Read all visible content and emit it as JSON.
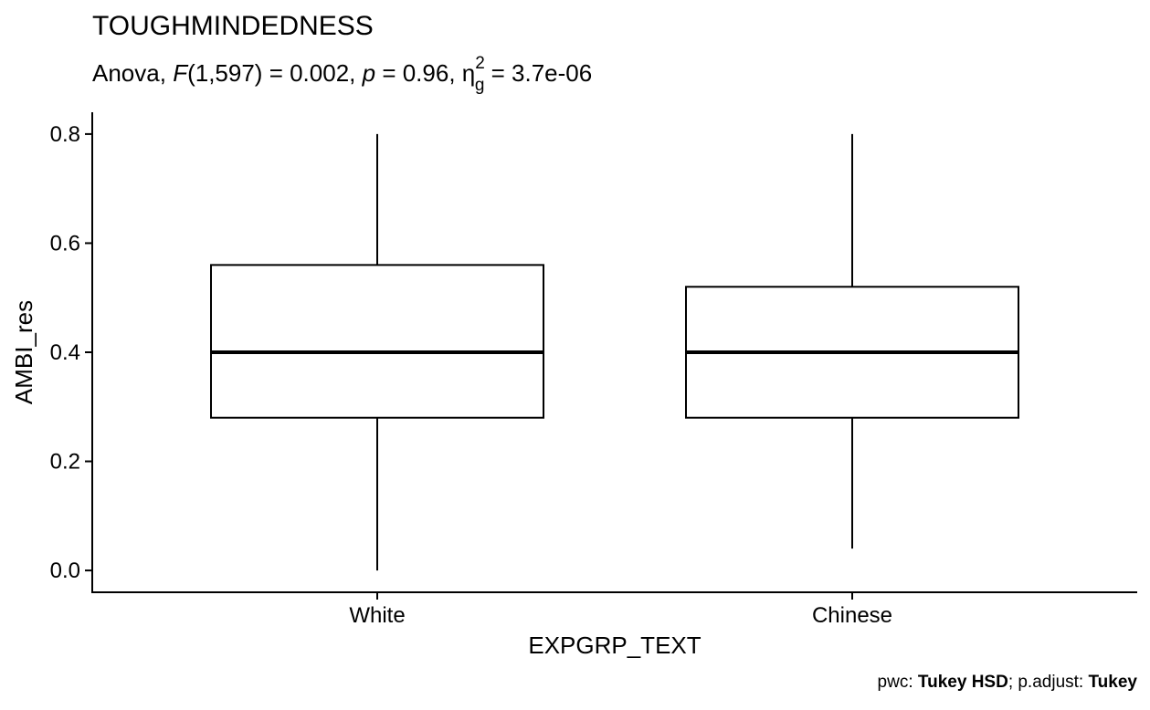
{
  "chart_data": {
    "type": "boxplot",
    "title": "TOUGHMINDEDNESS",
    "subtitle": {
      "test": "Anova",
      "stat_symbol": "F",
      "stat_df": "(1,597)",
      "stat_value": " = 0.002, ",
      "p_symbol": "p",
      "p_value": " = 0.96, ",
      "effect_symbol": "η",
      "effect_sub": "g",
      "effect_sup": "2",
      "effect_value": " = 3.7e-06"
    },
    "xlabel": "EXPGRP_TEXT",
    "ylabel": "AMBI_res",
    "ylim": [
      -0.04,
      0.84
    ],
    "yticks": [
      0.0,
      0.2,
      0.4,
      0.6,
      0.8
    ],
    "ytick_labels": [
      "0.0",
      "0.2",
      "0.4",
      "0.6",
      "0.8"
    ],
    "categories": [
      "White",
      "Chinese"
    ],
    "boxes": [
      {
        "category": "White",
        "min": 0.0,
        "q1": 0.28,
        "median": 0.4,
        "q3": 0.56,
        "max": 0.8
      },
      {
        "category": "Chinese",
        "min": 0.04,
        "q1": 0.28,
        "median": 0.4,
        "q3": 0.52,
        "max": 0.8
      }
    ],
    "grid": false,
    "caption": {
      "pwc_label": "pwc: ",
      "pwc_value": "Tukey HSD",
      "sep": "; p.adjust: ",
      "adjust_value": "Tukey"
    }
  }
}
